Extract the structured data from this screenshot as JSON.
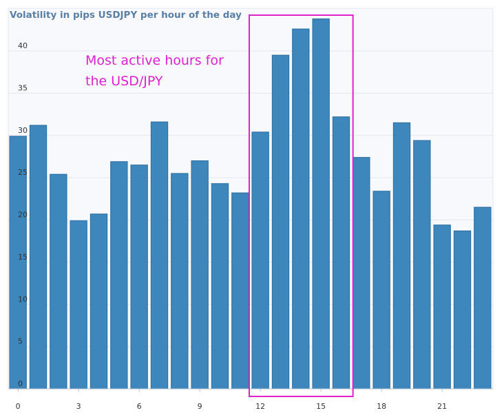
{
  "chart_data": {
    "type": "bar",
    "title": "Volatility in pips USDJPY per hour of the day",
    "xlabel": "",
    "ylabel": "",
    "categories": [
      0,
      1,
      2,
      3,
      4,
      5,
      6,
      7,
      8,
      9,
      10,
      11,
      12,
      13,
      14,
      15,
      16,
      17,
      18,
      19,
      20,
      21,
      22,
      23
    ],
    "x_tick_labels": [
      "0",
      "3",
      "6",
      "9",
      "12",
      "15",
      "18",
      "21"
    ],
    "y_tick_labels": [
      "0",
      "5",
      "10",
      "15",
      "20",
      "25",
      "30",
      "35",
      "40"
    ],
    "values": [
      29.9,
      31.2,
      25.4,
      19.9,
      20.7,
      26.9,
      26.5,
      31.6,
      25.5,
      27.0,
      24.3,
      23.2,
      30.4,
      39.5,
      42.6,
      43.8,
      32.2,
      27.4,
      23.4,
      31.5,
      29.4,
      19.4,
      18.7,
      21.5
    ],
    "ylim": [
      0,
      45
    ],
    "grid": true,
    "bar_color": "#3d87bc",
    "annotation": {
      "lines": [
        "Most active hours for",
        "the USD/JPY"
      ],
      "highlight_range": [
        12,
        16
      ],
      "color": "#e020cf"
    }
  }
}
